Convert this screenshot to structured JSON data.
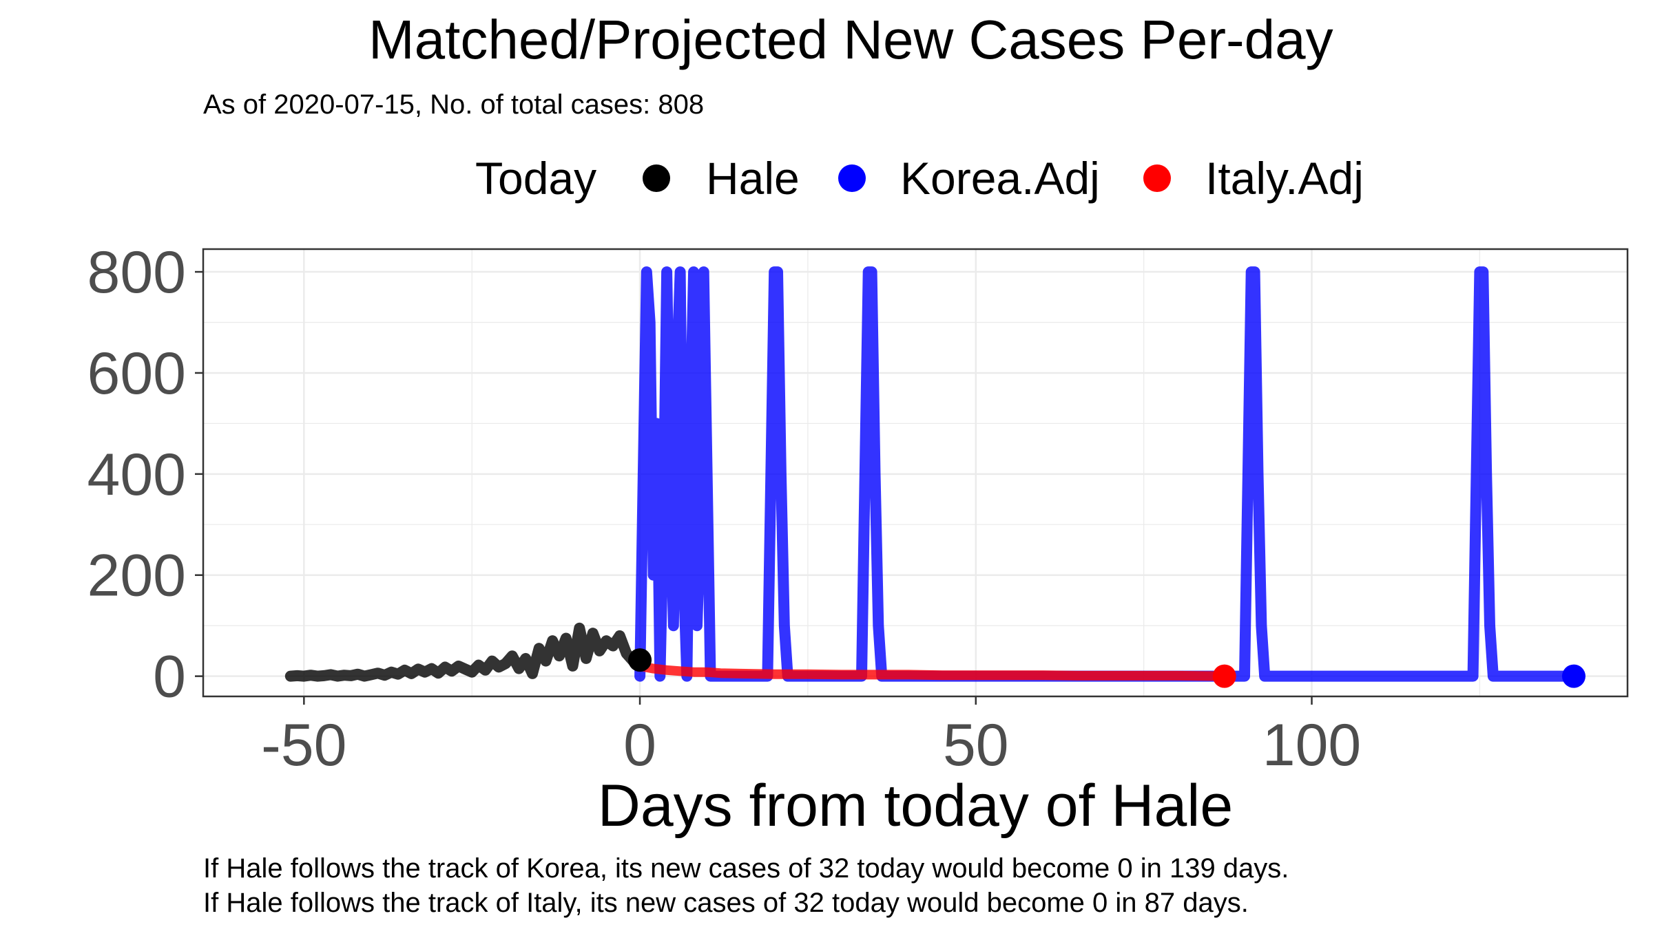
{
  "chart_data": {
    "type": "line",
    "title": "Matched/Projected New Cases Per-day",
    "subtitle": "As of 2020-07-15, No. of total cases: 808",
    "xlabel": "Days from today of Hale",
    "ylabel": "",
    "xlim": [
      -65,
      147
    ],
    "ylim": [
      -40,
      845
    ],
    "x_ticks": [
      -50,
      0,
      50,
      100
    ],
    "y_ticks": [
      0,
      200,
      400,
      600,
      800
    ],
    "grid": true,
    "legend": {
      "title": "Today",
      "position": "top"
    },
    "series": [
      {
        "name": "Hale",
        "color": "#000000",
        "x": [
          -52,
          -51,
          -50,
          -49,
          -48,
          -47,
          -46,
          -45,
          -44,
          -43,
          -42,
          -41,
          -40,
          -39,
          -38,
          -37,
          -36,
          -35,
          -34,
          -33,
          -32,
          -31,
          -30,
          -29,
          -28,
          -27,
          -26,
          -25,
          -24,
          -23,
          -22,
          -21,
          -20,
          -19,
          -18,
          -17,
          -16,
          -15,
          -14,
          -13,
          -12,
          -11,
          -10,
          -9,
          -8,
          -7,
          -6,
          -5,
          -4,
          -3,
          -2,
          -1,
          0
        ],
        "y": [
          0,
          1,
          0,
          2,
          0,
          1,
          3,
          0,
          2,
          1,
          4,
          0,
          3,
          6,
          2,
          8,
          4,
          12,
          5,
          14,
          8,
          15,
          6,
          18,
          10,
          20,
          14,
          8,
          22,
          12,
          30,
          18,
          25,
          40,
          15,
          35,
          5,
          55,
          30,
          70,
          40,
          75,
          20,
          95,
          35,
          85,
          50,
          70,
          60,
          80,
          45,
          30,
          32
        ]
      },
      {
        "name": "Korea.Adj",
        "color": "#0000ff",
        "x": [
          0,
          0.5,
          1,
          1.5,
          2,
          2.5,
          3,
          3.5,
          4,
          4.5,
          5,
          5.5,
          6,
          6.5,
          7,
          7.5,
          8,
          8.5,
          9,
          9.5,
          10,
          10.5,
          11,
          15,
          19,
          19.5,
          20,
          20.5,
          21,
          21.5,
          22,
          33,
          33.5,
          34,
          34.5,
          35,
          35.5,
          36,
          90,
          90.5,
          91,
          91.5,
          92,
          92.5,
          93,
          124,
          124.5,
          125,
          125.5,
          126,
          126.5,
          127,
          139
        ],
        "y": [
          0,
          400,
          800,
          700,
          200,
          500,
          0,
          300,
          800,
          400,
          100,
          600,
          800,
          200,
          0,
          500,
          800,
          100,
          300,
          800,
          400,
          0,
          0,
          0,
          0,
          400,
          800,
          800,
          400,
          100,
          0,
          0,
          400,
          800,
          800,
          400,
          100,
          0,
          0,
          400,
          800,
          800,
          400,
          100,
          0,
          0,
          400,
          800,
          800,
          400,
          100,
          0,
          0
        ]
      },
      {
        "name": "Italy.Adj",
        "color": "#ff0000",
        "x": [
          0,
          2,
          4,
          6,
          8,
          10,
          12,
          15,
          20,
          25,
          30,
          35,
          40,
          45,
          50,
          55,
          60,
          65,
          70,
          75,
          80,
          87
        ],
        "y": [
          20,
          15,
          12,
          10,
          8,
          8,
          6,
          5,
          4,
          4,
          3,
          3,
          3,
          2,
          2,
          2,
          2,
          1,
          1,
          1,
          1,
          0
        ]
      }
    ],
    "today_point": {
      "x": 0,
      "y": 32
    },
    "end_points": [
      {
        "series": "Korea.Adj",
        "x": 139,
        "y": 0
      },
      {
        "series": "Italy.Adj",
        "x": 87,
        "y": 0
      }
    ],
    "caption_lines": [
      "If Hale follows the track of Korea, its new cases of 32 today would become 0 in 139 days.",
      "If Hale follows the track of Italy, its new cases of 32 today would become 0 in 87 days."
    ]
  }
}
